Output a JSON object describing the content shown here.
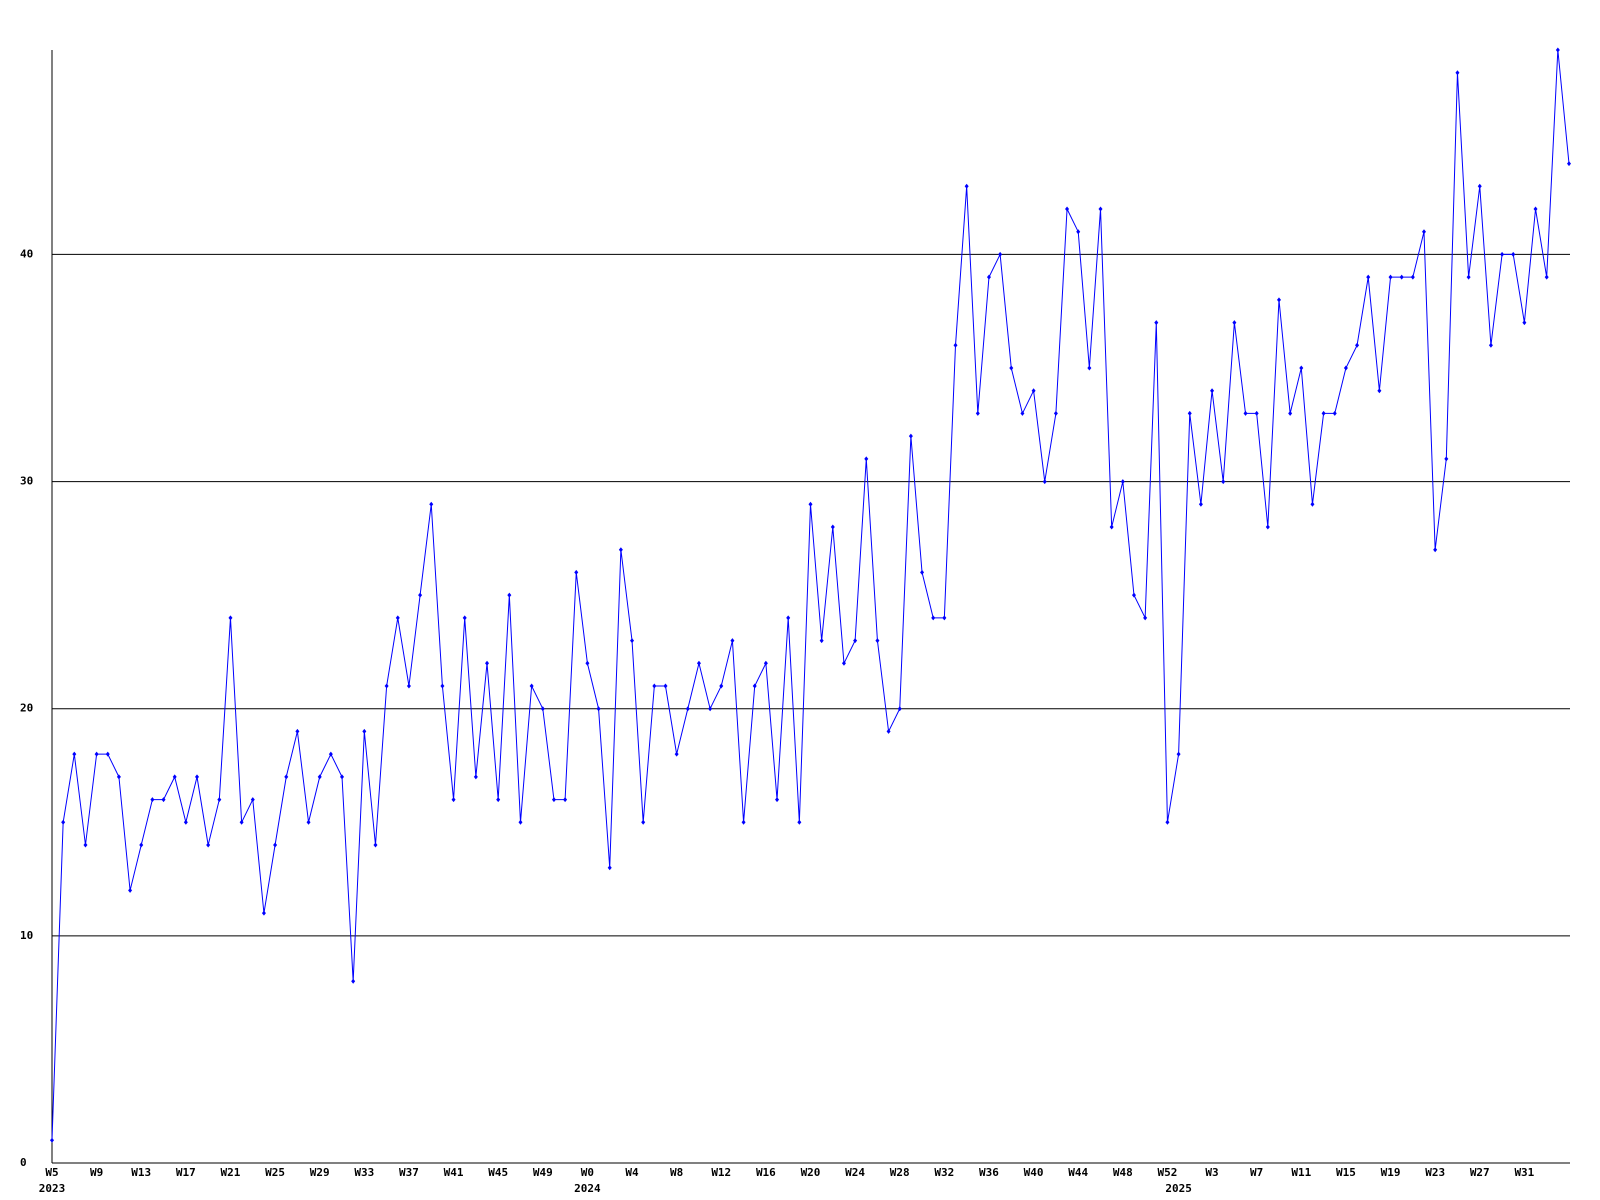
{
  "chart_data": {
    "type": "line",
    "categories": [
      "W5",
      null,
      null,
      null,
      "W9",
      null,
      null,
      null,
      "W13",
      null,
      null,
      null,
      "W17",
      null,
      null,
      null,
      "W21",
      null,
      null,
      null,
      "W25",
      null,
      null,
      null,
      "W29",
      null,
      null,
      null,
      "W33",
      null,
      null,
      null,
      "W37",
      null,
      null,
      null,
      "W41",
      null,
      null,
      null,
      "W45",
      null,
      null,
      null,
      "W49",
      null,
      null,
      null,
      "W0",
      null,
      null,
      null,
      "W4",
      null,
      null,
      null,
      "W8",
      null,
      null,
      null,
      "W12",
      null,
      null,
      null,
      "W16",
      null,
      null,
      null,
      "W20",
      null,
      null,
      null,
      "W24",
      null,
      null,
      null,
      "W28",
      null,
      null,
      null,
      "W32",
      null,
      null,
      null,
      "W36",
      null,
      null,
      null,
      "W40",
      null,
      null,
      null,
      "W44",
      null,
      null,
      null,
      "W48",
      null,
      null,
      null,
      "W52",
      null,
      null,
      null,
      "W3",
      null,
      null,
      null,
      "W7",
      null,
      null,
      null,
      "W11",
      null,
      null,
      null,
      "W15",
      null,
      null,
      null,
      "W19",
      null,
      null,
      null,
      "W23",
      null,
      null,
      null,
      "W27",
      null,
      null,
      null,
      "W31",
      null,
      null,
      null,
      null
    ],
    "years": [
      "2023",
      null,
      null,
      null,
      null,
      null,
      null,
      null,
      null,
      null,
      null,
      null,
      null,
      null,
      null,
      null,
      null,
      null,
      null,
      null,
      null,
      null,
      null,
      null,
      null,
      null,
      null,
      null,
      null,
      null,
      null,
      null,
      null,
      null,
      null,
      null,
      null,
      null,
      null,
      null,
      null,
      null,
      null,
      null,
      null,
      null,
      null,
      null,
      "2024",
      null,
      null,
      null,
      null,
      null,
      null,
      null,
      null,
      null,
      null,
      null,
      null,
      null,
      null,
      null,
      null,
      null,
      null,
      null,
      null,
      null,
      null,
      null,
      null,
      null,
      null,
      null,
      null,
      null,
      null,
      null,
      null,
      null,
      null,
      null,
      null,
      null,
      null,
      null,
      null,
      null,
      null,
      null,
      null,
      null,
      null,
      null,
      null,
      null,
      null,
      null,
      null,
      "2025",
      null,
      null,
      null,
      null,
      null,
      null,
      null,
      null,
      null,
      null,
      null,
      null,
      null,
      null,
      null,
      null,
      null,
      null,
      null,
      null,
      null,
      null,
      null,
      null,
      null,
      null,
      null,
      null,
      null,
      null,
      null,
      null,
      null,
      null,
      null
    ],
    "series": [
      {
        "color": "#0000ff",
        "values": [
          1,
          15,
          18,
          14,
          18,
          18,
          17,
          12,
          14,
          16,
          16,
          17,
          15,
          17,
          14,
          16,
          24,
          15,
          16,
          11,
          14,
          17,
          19,
          15,
          17,
          18,
          17,
          8,
          19,
          14,
          21,
          24,
          21,
          25,
          29,
          21,
          16,
          24,
          17,
          22,
          16,
          25,
          15,
          21,
          20,
          16,
          16,
          26,
          22,
          20,
          13,
          27,
          23,
          15,
          21,
          21,
          18,
          20,
          22,
          20,
          21,
          23,
          15,
          21,
          22,
          16,
          24,
          15,
          29,
          23,
          28,
          22,
          23,
          31,
          23,
          19,
          20,
          32,
          26,
          24,
          24,
          36,
          43,
          33,
          39,
          40,
          35,
          33,
          34,
          30,
          33,
          42,
          41,
          35,
          42,
          28,
          30,
          25,
          24,
          37,
          15,
          18,
          33,
          29,
          34,
          30,
          37,
          33,
          33,
          28,
          38,
          33,
          35,
          29,
          33,
          33,
          35,
          36,
          39,
          34,
          39,
          39,
          39,
          41,
          27,
          31,
          48,
          39,
          43,
          36,
          40,
          40,
          37,
          42,
          39,
          49,
          44
        ]
      }
    ],
    "ylim": [
      0,
      49
    ],
    "yticks": [
      0,
      10,
      20,
      30,
      40
    ],
    "grid": true
  }
}
